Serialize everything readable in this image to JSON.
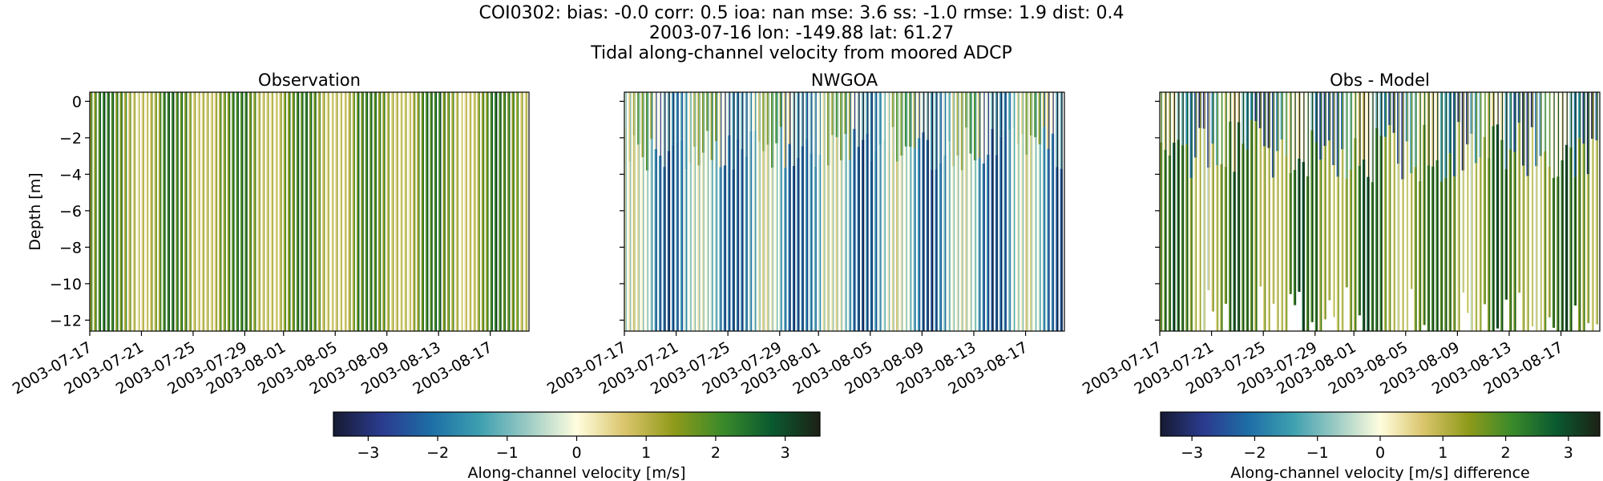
{
  "figure": {
    "title_lines": [
      "COI0302: bias: -0.0  corr: 0.5  ioa: nan  mse: 3.6  ss: -1.0  rmse: 1.9  dist: 0.4",
      "2003-07-16 lon: -149.88 lat: 61.27",
      "Tidal along-channel velocity from moored ADCP"
    ]
  },
  "colormap": {
    "name": "delta",
    "stops": [
      "#161a32",
      "#2b3b8f",
      "#1d6ea6",
      "#3d9fb0",
      "#9ccbc4",
      "#fffdde",
      "#d9c46a",
      "#8f9a1a",
      "#3a8a2a",
      "#0a5a30",
      "#1c2115"
    ]
  },
  "chart_data": [
    {
      "type": "heatmap",
      "title": "Observation",
      "xlabel": "",
      "ylabel": "Depth [m]",
      "ylim": [
        -12.6,
        0.5
      ],
      "yticks": [
        0,
        -2,
        -4,
        -6,
        -8,
        -10,
        -12
      ],
      "xlim": [
        "2003-07-17",
        "2003-08-20"
      ],
      "xticks": [
        "2003-07-17",
        "2003-07-21",
        "2003-07-25",
        "2003-07-29",
        "2003-08-01",
        "2003-08-05",
        "2003-08-09",
        "2003-08-13",
        "2003-08-17"
      ],
      "cells_per_day": 3,
      "pattern": "observation",
      "value_range": [
        -3.5,
        3.5
      ]
    },
    {
      "type": "heatmap",
      "title": "NWGOA",
      "xlabel": "",
      "ylabel": "",
      "ylim": [
        -12.6,
        0.5
      ],
      "yticks": [
        0,
        -2,
        -4,
        -6,
        -8,
        -10,
        -12
      ],
      "xlim": [
        "2003-07-17",
        "2003-08-20"
      ],
      "xticks": [
        "2003-07-17",
        "2003-07-21",
        "2003-07-25",
        "2003-07-29",
        "2003-08-01",
        "2003-08-05",
        "2003-08-09",
        "2003-08-13",
        "2003-08-17"
      ],
      "cells_per_day": 3,
      "pattern": "model",
      "value_range": [
        -3.5,
        3.5
      ]
    },
    {
      "type": "heatmap",
      "title": "Obs - Model",
      "xlabel": "",
      "ylabel": "",
      "ylim": [
        -12.6,
        0.5
      ],
      "yticks": [
        0,
        -2,
        -4,
        -6,
        -8,
        -10,
        -12
      ],
      "xlim": [
        "2003-07-17",
        "2003-08-20"
      ],
      "xticks": [
        "2003-07-17",
        "2003-07-21",
        "2003-07-25",
        "2003-07-29",
        "2003-08-01",
        "2003-08-05",
        "2003-08-09",
        "2003-08-13",
        "2003-08-17"
      ],
      "cells_per_day": 3,
      "pattern": "difference",
      "value_range": [
        -3.5,
        3.5
      ]
    }
  ],
  "colorbars": [
    {
      "label": "Along-channel velocity [m/s]",
      "range": [
        -3.5,
        3.5
      ],
      "ticks": [
        -3,
        -2,
        -1,
        0,
        1,
        2,
        3
      ],
      "tick_labels": [
        "−3",
        "−2",
        "−1",
        "0",
        "1",
        "2",
        "3"
      ]
    },
    {
      "label": "Along-channel velocity [m/s] difference",
      "range": [
        -3.5,
        3.5
      ],
      "ticks": [
        -3,
        -2,
        -1,
        0,
        1,
        2,
        3
      ],
      "tick_labels": [
        "−3",
        "−2",
        "−1",
        "0",
        "1",
        "2",
        "3"
      ]
    }
  ]
}
